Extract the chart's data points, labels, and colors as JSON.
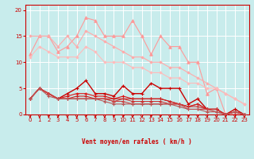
{
  "title": "",
  "xlabel": "Vent moyen/en rafales ( km/h )",
  "ylabel": "",
  "background_color": "#c8ecec",
  "grid_color": "#ffffff",
  "xlim": [
    -0.5,
    23.5
  ],
  "ylim": [
    0,
    21
  ],
  "yticks": [
    0,
    5,
    10,
    15,
    20
  ],
  "xticks": [
    0,
    1,
    2,
    3,
    4,
    5,
    6,
    7,
    8,
    9,
    10,
    11,
    12,
    13,
    14,
    15,
    16,
    17,
    18,
    19,
    20,
    21,
    22,
    23
  ],
  "series": [
    {
      "x": [
        0,
        1,
        2,
        3,
        4,
        5,
        6,
        7,
        8,
        9,
        10,
        11,
        12,
        13,
        14,
        15,
        16,
        17,
        18,
        19,
        20,
        21,
        22,
        23
      ],
      "y": [
        11.5,
        15,
        15,
        12,
        13,
        15,
        18.5,
        18,
        15,
        15,
        15,
        18,
        15,
        11.5,
        15,
        13,
        13,
        10,
        10,
        4,
        5,
        0,
        0,
        0
      ],
      "color": "#ff9999",
      "marker": "^",
      "markersize": 2.5,
      "linewidth": 0.8,
      "zorder": 2
    },
    {
      "x": [
        0,
        1,
        2,
        3,
        4,
        5,
        6,
        7,
        8,
        9,
        10,
        11,
        12,
        13,
        14,
        15,
        16,
        17,
        18,
        19,
        20,
        21,
        22,
        23
      ],
      "y": [
        15,
        15,
        15,
        13,
        15,
        13,
        16,
        15,
        14,
        13,
        12,
        11,
        11,
        10,
        10,
        9,
        9,
        8,
        7,
        6,
        5,
        4,
        3,
        2
      ],
      "color": "#ffaaaa",
      "marker": "D",
      "markersize": 1.5,
      "linewidth": 0.8,
      "zorder": 2
    },
    {
      "x": [
        0,
        1,
        2,
        3,
        4,
        5,
        6,
        7,
        8,
        9,
        10,
        11,
        12,
        13,
        14,
        15,
        16,
        17,
        18,
        19,
        20,
        21,
        22,
        23
      ],
      "y": [
        11,
        13,
        12,
        11,
        11,
        11,
        13,
        12,
        10,
        10,
        10,
        9,
        9,
        8,
        8,
        7,
        7,
        6,
        6,
        5,
        5,
        4,
        3,
        2
      ],
      "color": "#ffbbbb",
      "marker": "D",
      "markersize": 1.5,
      "linewidth": 0.8,
      "zorder": 2
    },
    {
      "x": [
        0,
        1,
        2,
        3,
        4,
        5,
        6,
        7,
        8,
        9,
        10,
        11,
        12,
        13,
        14,
        15,
        16,
        17,
        18,
        19,
        20,
        21,
        22,
        23
      ],
      "y": [
        3,
        5,
        4,
        3,
        4,
        5,
        6.5,
        4,
        4,
        3.5,
        5.5,
        4,
        4,
        6,
        5,
        5,
        5,
        2,
        3,
        1,
        1,
        0,
        1,
        0
      ],
      "color": "#cc0000",
      "marker": "+",
      "markersize": 3,
      "linewidth": 1.0,
      "zorder": 3
    },
    {
      "x": [
        0,
        1,
        2,
        3,
        4,
        5,
        6,
        7,
        8,
        9,
        10,
        11,
        12,
        13,
        14,
        15,
        16,
        17,
        18,
        19,
        20,
        21,
        22,
        23
      ],
      "y": [
        3,
        5,
        4,
        3,
        3.5,
        4,
        4,
        3.5,
        3.5,
        3,
        3.5,
        3,
        3,
        3,
        3,
        2.5,
        2,
        1.5,
        2,
        1,
        1,
        0,
        0.5,
        0
      ],
      "color": "#dd1111",
      "marker": "+",
      "markersize": 2.5,
      "linewidth": 0.8,
      "zorder": 3
    },
    {
      "x": [
        0,
        1,
        2,
        3,
        4,
        5,
        6,
        7,
        8,
        9,
        10,
        11,
        12,
        13,
        14,
        15,
        16,
        17,
        18,
        19,
        20,
        21,
        22,
        23
      ],
      "y": [
        3,
        5,
        4,
        3,
        3,
        3.5,
        3.5,
        3,
        3,
        3,
        3,
        3,
        3,
        3,
        3,
        2.5,
        2,
        1.5,
        2,
        1,
        1,
        0,
        0.5,
        0
      ],
      "color": "#cc2222",
      "marker": "+",
      "markersize": 2.5,
      "linewidth": 0.8,
      "zorder": 3
    },
    {
      "x": [
        0,
        1,
        2,
        3,
        4,
        5,
        6,
        7,
        8,
        9,
        10,
        11,
        12,
        13,
        14,
        15,
        16,
        17,
        18,
        19,
        20,
        21,
        22,
        23
      ],
      "y": [
        3,
        5,
        4,
        3,
        3,
        3,
        3,
        3,
        3,
        2.5,
        3,
        2.5,
        2.5,
        2.5,
        2.5,
        2,
        2,
        1.5,
        1.5,
        1,
        1,
        0,
        0.5,
        0
      ],
      "color": "#cc3333",
      "marker": "+",
      "markersize": 2.5,
      "linewidth": 0.8,
      "zorder": 3
    },
    {
      "x": [
        0,
        1,
        2,
        3,
        4,
        5,
        6,
        7,
        8,
        9,
        10,
        11,
        12,
        13,
        14,
        15,
        16,
        17,
        18,
        19,
        20,
        21,
        22,
        23
      ],
      "y": [
        3,
        5,
        4,
        3,
        3,
        3,
        3,
        3,
        3,
        2.5,
        2.5,
        2,
        2,
        2,
        2,
        2,
        2,
        1,
        1,
        1,
        0.5,
        0,
        0.5,
        0
      ],
      "color": "#cc4444",
      "marker": "+",
      "markersize": 2.5,
      "linewidth": 0.8,
      "zorder": 3
    },
    {
      "x": [
        0,
        1,
        2,
        3,
        4,
        5,
        6,
        7,
        8,
        9,
        10,
        11,
        12,
        13,
        14,
        15,
        16,
        17,
        18,
        19,
        20,
        21,
        22,
        23
      ],
      "y": [
        3,
        5,
        3.5,
        3,
        3,
        3,
        3,
        3,
        2.5,
        2,
        2,
        2,
        2,
        2,
        2,
        2,
        1.5,
        1,
        1,
        0.5,
        0.5,
        0,
        0.5,
        0
      ],
      "color": "#bb5555",
      "marker": "+",
      "markersize": 2.5,
      "linewidth": 0.8,
      "zorder": 3
    }
  ],
  "wind_arrows": {
    "x": [
      0,
      1,
      2,
      3,
      4,
      5,
      6,
      7,
      8,
      9,
      10,
      11,
      12,
      13,
      14,
      15,
      16,
      17,
      18,
      19,
      20,
      21,
      22,
      23
    ],
    "angles_deg": [
      270,
      270,
      270,
      250,
      270,
      270,
      270,
      270,
      270,
      250,
      250,
      250,
      250,
      250,
      250,
      250,
      250,
      270,
      270,
      270,
      270,
      270,
      270,
      270
    ]
  }
}
